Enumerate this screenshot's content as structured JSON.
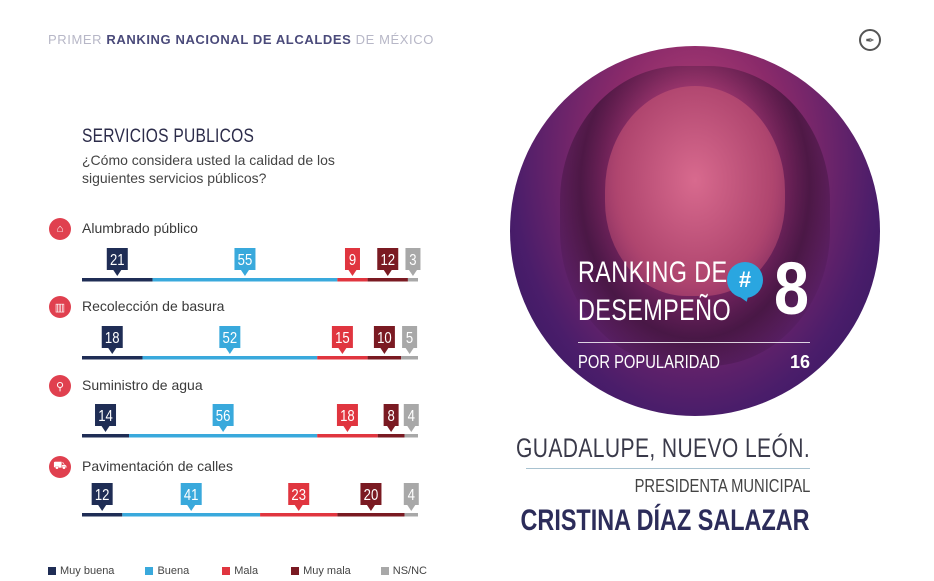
{
  "header": {
    "prefix": "PRIMER ",
    "bold": "RANKING NACIONAL DE ALCALDES",
    "suffix": " DE MÉXICO",
    "logo_icon": "pen-nib-icon"
  },
  "section": {
    "title": "SERVICIOS PUBLICOS",
    "question": "¿Cómo considera usted la calidad de los siguientes servicios públicos?"
  },
  "services": [
    {
      "label": "Alumbrado público",
      "icon": "lamp-icon"
    },
    {
      "label": "Recolección de basura",
      "icon": "trash-can-icon"
    },
    {
      "label": "Suministro de agua",
      "icon": "faucet-icon"
    },
    {
      "label": "Pavimentación de calles",
      "icon": "road-roller-icon"
    }
  ],
  "legend": [
    {
      "label": "Muy buena",
      "color": "#1f2d55"
    },
    {
      "label": "Buena",
      "color": "#39a9dc"
    },
    {
      "label": "Mala",
      "color": "#e0353f"
    },
    {
      "label": "Muy mala",
      "color": "#7a1a22"
    },
    {
      "label": "NS/NC",
      "color": "#a8a8a8"
    }
  ],
  "chart_data": {
    "type": "bar",
    "stacked": true,
    "orientation": "horizontal",
    "title": "SERVICIOS PUBLICOS",
    "categories": [
      "Alumbrado público",
      "Recolección de basura",
      "Suministro de agua",
      "Pavimentación de calles"
    ],
    "series": [
      {
        "name": "Muy buena",
        "color": "#1f2d55",
        "values": [
          21,
          18,
          14,
          12
        ]
      },
      {
        "name": "Buena",
        "color": "#39a9dc",
        "values": [
          55,
          52,
          56,
          41
        ]
      },
      {
        "name": "Mala",
        "color": "#e0353f",
        "values": [
          9,
          15,
          18,
          23
        ]
      },
      {
        "name": "Muy mala",
        "color": "#7a1a22",
        "values": [
          12,
          10,
          8,
          20
        ]
      },
      {
        "name": "NS/NC",
        "color": "#a8a8a8",
        "values": [
          3,
          5,
          4,
          4
        ]
      }
    ],
    "legend_position": "bottom"
  },
  "ranking": {
    "line1": "RANKING DE",
    "line2": "DESEMPEÑO",
    "badge": "#",
    "number": "8",
    "popularity_label": "POR POPULARIDAD",
    "popularity_value": "16",
    "photo": "portrait-photo"
  },
  "profile": {
    "location": "GUADALUPE, NUEVO LEÓN.",
    "role": "PRESIDENTA MUNICIPAL",
    "name": "CRISTINA DÍAZ SALAZAR"
  }
}
